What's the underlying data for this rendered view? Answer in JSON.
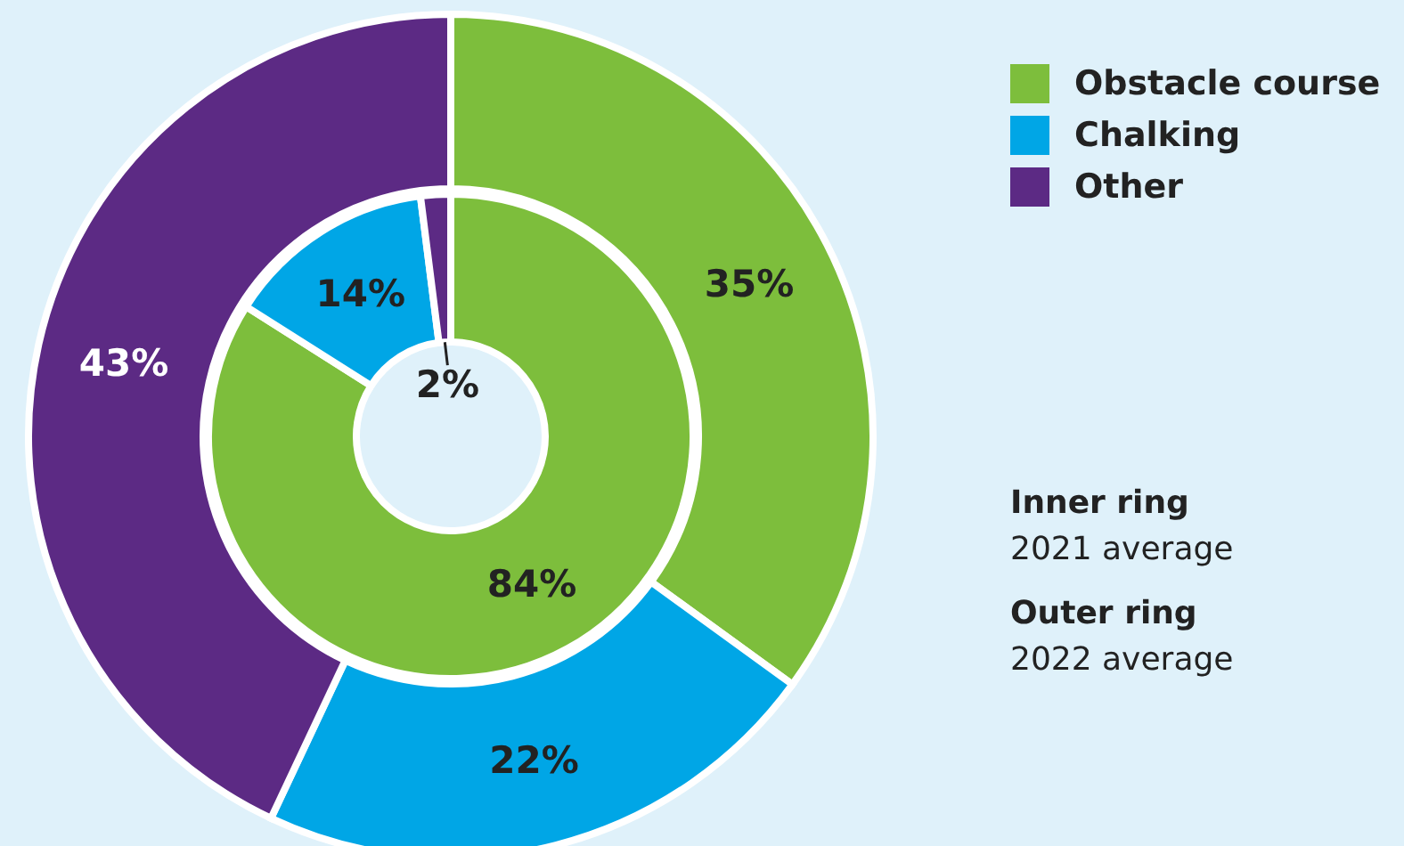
{
  "chart_data": {
    "type": "donut",
    "categories": [
      "Obstacle course",
      "Chalking",
      "Other"
    ],
    "colors": [
      "#7dbe3c",
      "#00a6e6",
      "#5c2a84"
    ],
    "series": [
      {
        "values": [
          84,
          14,
          2
        ],
        "value_labels": [
          "84%",
          "14%",
          "2%"
        ]
      },
      {
        "values": [
          35,
          22,
          43
        ],
        "value_labels": [
          "35%",
          "22%",
          "43%"
        ]
      }
    ],
    "legend": "top right",
    "annotations": [
      "Inner ring",
      "2021 average",
      "Outer ring",
      "2022 average"
    ]
  }
}
